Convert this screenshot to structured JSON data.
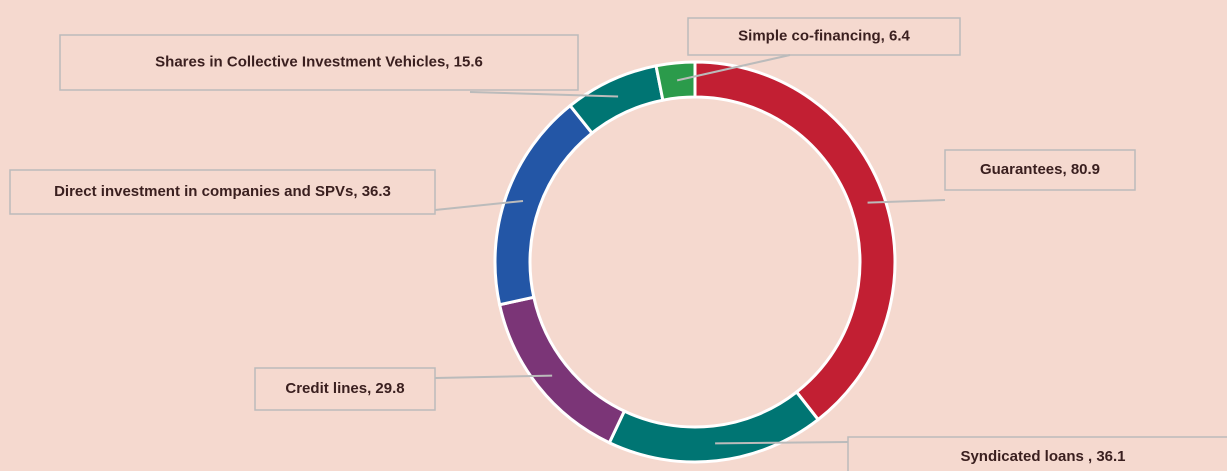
{
  "chart_data": {
    "type": "donut",
    "values": [
      80.9,
      36.1,
      29.8,
      36.3,
      15.6,
      6.4
    ],
    "value_labels": [
      "Guarantees,  80.9",
      "Syndicated loans , 36.1",
      "Credit lines,  29.8",
      "Direct investment in companies and SPVs, 36.3",
      "Shares in Collective Investment Vehicles, 15.6",
      "Simple co-financing, 6.4"
    ],
    "colors": [
      "#c21f33",
      "#007573",
      "#7b3577",
      "#2356a6",
      "#007573",
      "#2b9b4b"
    ]
  }
}
